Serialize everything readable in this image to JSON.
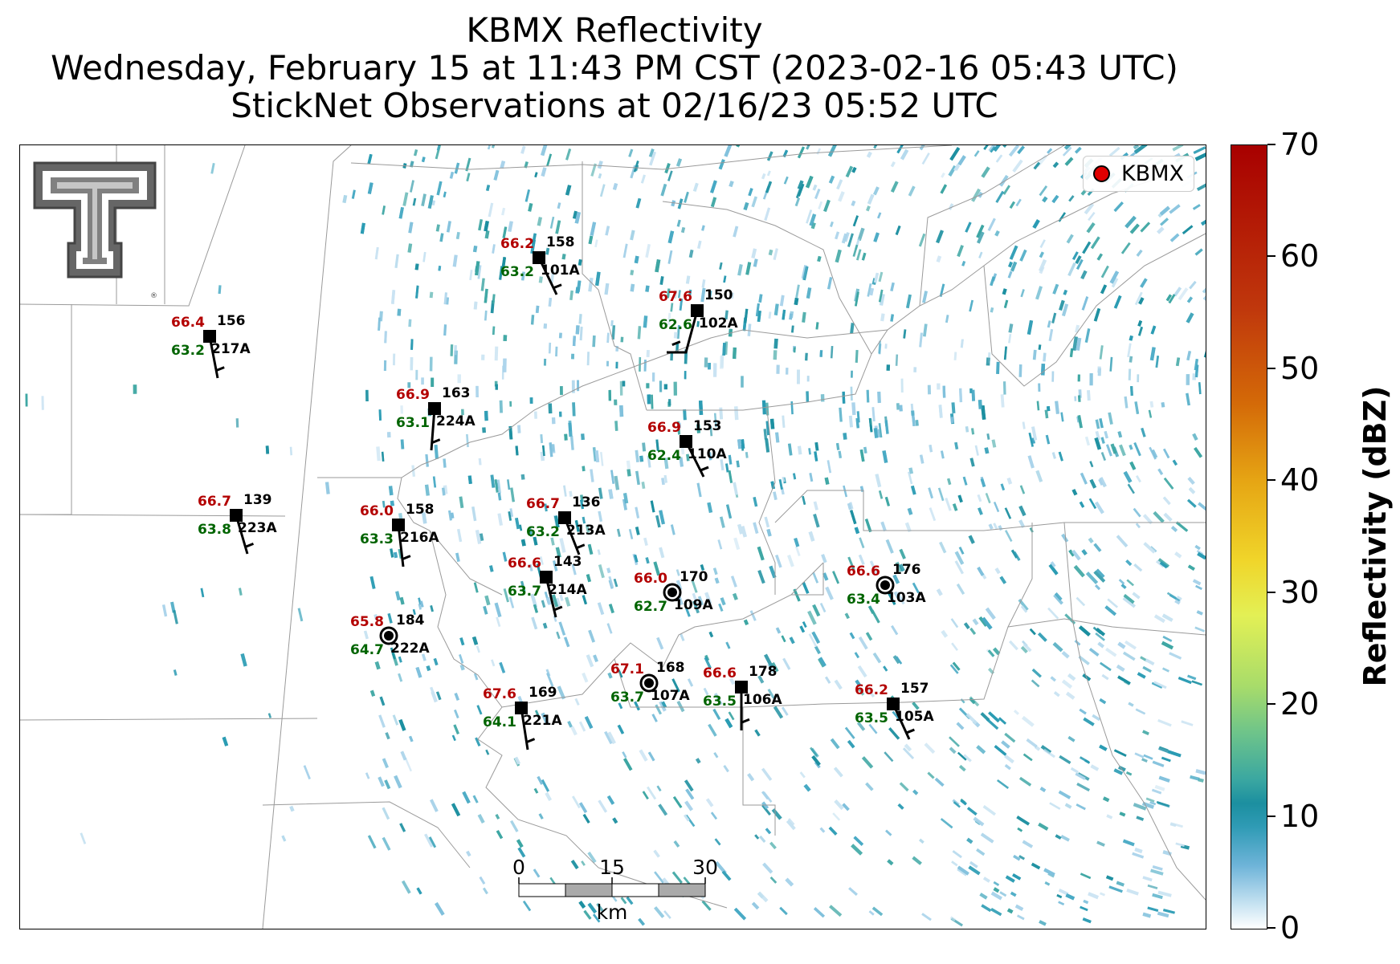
{
  "title": {
    "line1": "KBMX Reflectivity",
    "line2": "Wednesday, February 15 at 11:43 PM CST (2023-02-16 05:43 UTC)",
    "line3": "StickNet Observations at 02/16/23 05:52 UTC"
  },
  "legend": {
    "label": "KBMX",
    "marker_color": "#e00000"
  },
  "colorbar": {
    "label": "Reflectivity (dBZ)",
    "ticks": [
      "0",
      "10",
      "20",
      "30",
      "40",
      "50",
      "60",
      "70"
    ],
    "range": [
      0,
      70
    ]
  },
  "scale_bar": {
    "ticks": [
      "0",
      "15",
      "30"
    ],
    "unit": "km"
  },
  "colors": {
    "temperature": "#b30000",
    "dewpoint": "#006400",
    "id": "#000000",
    "echo": "#1c8fa0"
  },
  "stations": [
    {
      "id": "101A",
      "temp": "66.2",
      "dew": "63.2",
      "pres": "158",
      "calm": false
    },
    {
      "id": "102A",
      "temp": "67.6",
      "dew": "62.6",
      "pres": "150",
      "calm": false
    },
    {
      "id": "217A",
      "temp": "66.4",
      "dew": "63.2",
      "pres": "156",
      "calm": false
    },
    {
      "id": "224A",
      "temp": "66.9",
      "dew": "63.1",
      "pres": "163",
      "calm": false
    },
    {
      "id": "110A",
      "temp": "66.9",
      "dew": "62.4",
      "pres": "153",
      "calm": false
    },
    {
      "id": "223A",
      "temp": "66.7",
      "dew": "63.8",
      "pres": "139",
      "calm": false
    },
    {
      "id": "216A",
      "temp": "66.0",
      "dew": "63.3",
      "pres": "158",
      "calm": false
    },
    {
      "id": "213A",
      "temp": "66.7",
      "dew": "63.2",
      "pres": "136",
      "calm": false
    },
    {
      "id": "214A",
      "temp": "66.6",
      "dew": "63.7",
      "pres": "143",
      "calm": false
    },
    {
      "id": "109A",
      "temp": "66.0",
      "dew": "62.7",
      "pres": "170",
      "calm": true
    },
    {
      "id": "103A",
      "temp": "66.6",
      "dew": "63.4",
      "pres": "176",
      "calm": true
    },
    {
      "id": "222A",
      "temp": "65.8",
      "dew": "64.7",
      "pres": "184",
      "calm": true
    },
    {
      "id": "107A",
      "temp": "67.1",
      "dew": "63.7",
      "pres": "168",
      "calm": true
    },
    {
      "id": "106A",
      "temp": "66.6",
      "dew": "63.5",
      "pres": "178",
      "calm": false
    },
    {
      "id": "221A",
      "temp": "67.6",
      "dew": "64.1",
      "pres": "169",
      "calm": false
    },
    {
      "id": "105A",
      "temp": "66.2",
      "dew": "63.5",
      "pres": "157",
      "calm": false
    }
  ]
}
